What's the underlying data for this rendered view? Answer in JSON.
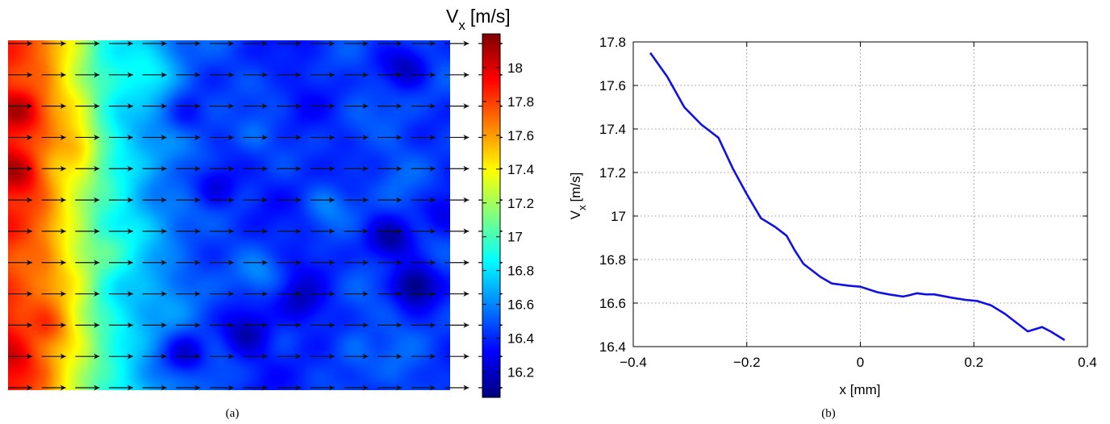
{
  "panels": {
    "a": {
      "caption": "(a)"
    },
    "b": {
      "caption": "(b)"
    }
  },
  "chart_data": [
    {
      "type": "heatmap",
      "panel": "a",
      "title": "",
      "colorbar_label_main": "V",
      "colorbar_label_sub": "x",
      "colorbar_label_unit": "[m/s]",
      "colorbar_range": [
        16.05,
        18.2
      ],
      "colorbar_ticks": [
        16.2,
        16.4,
        16.6,
        16.8,
        17,
        17.2,
        17.4,
        17.6,
        17.8,
        18
      ],
      "colorbar_tick_labels": [
        "16.2",
        "16.4",
        "16.6",
        "16.8",
        "17",
        "17.2",
        "17.4",
        "17.6",
        "17.8",
        "18"
      ],
      "colormap": "jet",
      "field_column_profile": [
        17.85,
        17.75,
        17.65,
        17.45,
        17.25,
        17.0,
        16.85,
        16.75,
        16.65,
        16.58,
        16.52,
        16.48,
        16.45,
        16.42,
        16.4,
        16.4,
        16.38,
        16.4,
        16.42,
        16.45,
        16.45,
        16.48,
        16.47,
        16.45,
        16.43
      ],
      "blobs": [
        {
          "c": 0.03,
          "r": 0.2,
          "d": 0.35
        },
        {
          "c": 0.03,
          "r": 0.38,
          "d": 0.3
        },
        {
          "c": 0.16,
          "r": 0.3,
          "d": 0.25
        },
        {
          "c": 0.1,
          "r": 0.82,
          "d": 0.25
        },
        {
          "c": 0.02,
          "r": 0.91,
          "d": 0.2
        },
        {
          "c": 0.4,
          "r": 0.22,
          "d": -0.2
        },
        {
          "c": 0.47,
          "r": 0.42,
          "d": -0.25
        },
        {
          "c": 0.56,
          "r": 0.27,
          "d": 0.15
        },
        {
          "c": 0.57,
          "r": 0.67,
          "d": 0.15
        },
        {
          "c": 0.4,
          "r": 0.9,
          "d": -0.3
        },
        {
          "c": 0.54,
          "r": 0.84,
          "d": -0.25
        },
        {
          "c": 0.87,
          "r": 0.57,
          "d": -0.3
        },
        {
          "c": 0.92,
          "r": 0.7,
          "d": -0.4
        },
        {
          "c": 0.9,
          "r": 0.08,
          "d": -0.25
        },
        {
          "c": 0.33,
          "r": 0.1,
          "d": 0.15
        },
        {
          "c": 0.72,
          "r": 0.47,
          "d": 0.15
        },
        {
          "c": 0.66,
          "r": 0.75,
          "d": -0.2
        },
        {
          "c": 0.98,
          "r": 0.5,
          "d": -0.15
        },
        {
          "c": 0.78,
          "r": 0.88,
          "d": 0.12
        },
        {
          "c": 0.23,
          "r": 0.6,
          "d": 0.1
        }
      ],
      "quiver": {
        "rows": 12,
        "columns": 15,
        "direction": "right"
      }
    },
    {
      "type": "line",
      "panel": "b",
      "title": "",
      "xlabel": "x [mm]",
      "ylabel_main": "V",
      "ylabel_sub": "x",
      "ylabel_unit": "[m/s]",
      "xlim": [
        -0.4,
        0.4
      ],
      "ylim": [
        16.4,
        17.8
      ],
      "xticks": [
        -0.4,
        -0.2,
        0,
        0.2,
        0.4
      ],
      "xtick_labels": [
        "−0.4",
        "−0.2",
        "0",
        "0.2",
        "0.4"
      ],
      "yticks": [
        16.4,
        16.6,
        16.8,
        17,
        17.2,
        17.4,
        17.6,
        17.8
      ],
      "ytick_labels": [
        "16.4",
        "16.6",
        "16.8",
        "17",
        "17.2",
        "17.4",
        "17.6",
        "17.8"
      ],
      "grid": true,
      "series": [
        {
          "color": "#1010e6",
          "x": [
            -0.37,
            -0.34,
            -0.31,
            -0.28,
            -0.25,
            -0.225,
            -0.2,
            -0.175,
            -0.15,
            -0.13,
            -0.115,
            -0.1,
            -0.085,
            -0.07,
            -0.05,
            -0.02,
            0.0,
            0.03,
            0.05,
            0.075,
            0.085,
            0.1,
            0.115,
            0.13,
            0.16,
            0.185,
            0.205,
            0.23,
            0.255,
            0.27,
            0.295,
            0.32,
            0.335,
            0.36
          ],
          "y": [
            17.75,
            17.64,
            17.5,
            17.42,
            17.36,
            17.22,
            17.1,
            16.99,
            16.95,
            16.91,
            16.84,
            16.78,
            16.75,
            16.72,
            16.69,
            16.68,
            16.675,
            16.65,
            16.64,
            16.63,
            16.635,
            16.645,
            16.64,
            16.64,
            16.625,
            16.615,
            16.61,
            16.59,
            16.55,
            16.52,
            16.47,
            16.49,
            16.47,
            16.43
          ]
        }
      ]
    }
  ]
}
